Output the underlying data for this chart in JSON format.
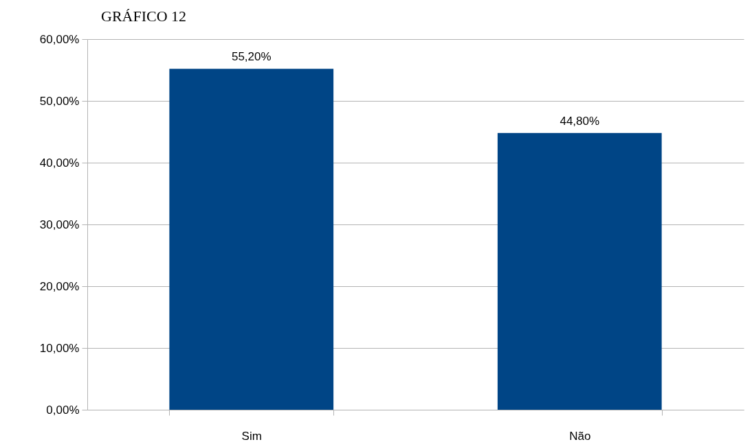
{
  "chart_data": {
    "type": "bar",
    "title": "GRÁFICO 12",
    "categories": [
      "Sim",
      "Não"
    ],
    "values": [
      55.2,
      44.8
    ],
    "color": "#004586",
    "value_labels": [
      "55,20%",
      "44,80%"
    ],
    "ylim": [
      0,
      60
    ],
    "yticks": [
      {
        "value": 0,
        "label": "0,00%"
      },
      {
        "value": 10,
        "label": "10,00%"
      },
      {
        "value": 20,
        "label": "20,00%"
      },
      {
        "value": 30,
        "label": "30,00%"
      },
      {
        "value": 40,
        "label": "40,00%"
      },
      {
        "value": 50,
        "label": "50,00%"
      },
      {
        "value": 60,
        "label": "60,00%"
      }
    ],
    "grid": "y"
  }
}
